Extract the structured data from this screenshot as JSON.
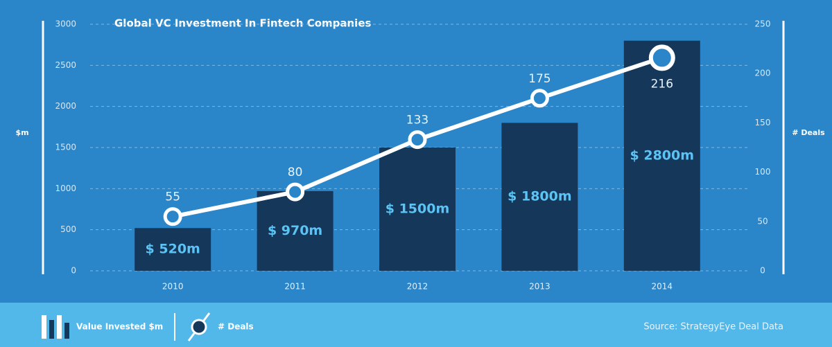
{
  "chart_data": {
    "type": "bar-line",
    "title": "Global VC Investment In Fintech Companies",
    "y_label": "$m",
    "y2_label": "# Deals",
    "categories": [
      "2010",
      "2011",
      "2012",
      "2013",
      "2014"
    ],
    "series": [
      {
        "name": "Value Invested $m",
        "type": "bar",
        "color": "#15375a",
        "label_color": "#5cc3f5",
        "values": [
          520,
          970,
          1500,
          1800,
          2800
        ],
        "value_labels": [
          "$ 520m",
          "$ 970m",
          "$ 1500m",
          "$ 1800m",
          "$ 2800m"
        ]
      },
      {
        "name": "# Deals",
        "type": "line",
        "axis": "y2",
        "color": "#ffffff",
        "values": [
          55,
          80,
          133,
          175,
          216
        ]
      }
    ],
    "ylim": [
      0,
      3000
    ],
    "yticks": [
      0,
      500,
      1000,
      1500,
      2000,
      2500,
      3000
    ],
    "y2lim": [
      0,
      250
    ],
    "y2ticks": [
      0,
      50,
      100,
      150,
      200,
      250
    ],
    "grid": true,
    "source": "Source: StrategyEye Deal Data"
  }
}
